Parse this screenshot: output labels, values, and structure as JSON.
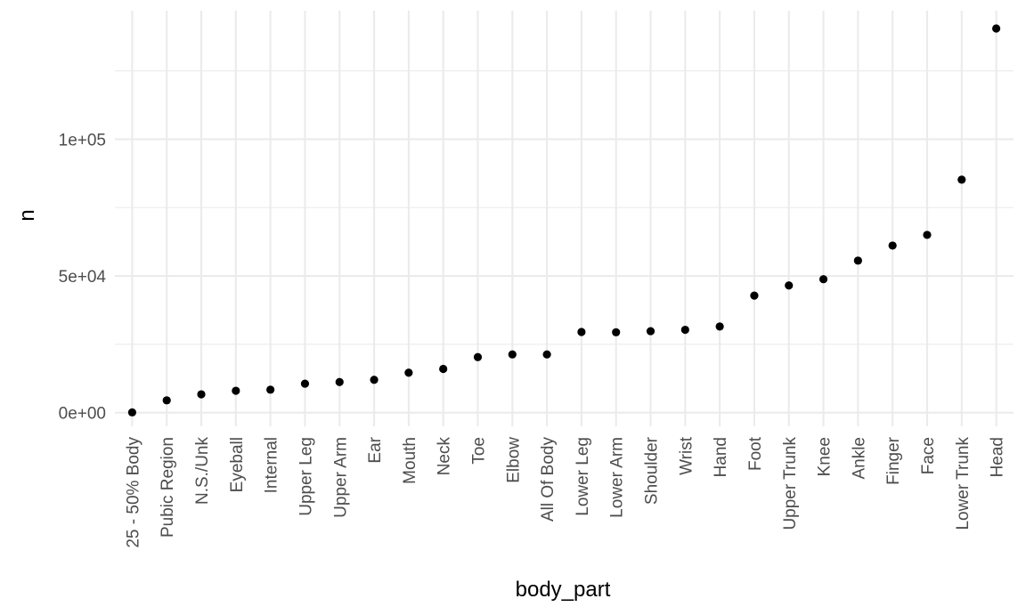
{
  "chart_data": {
    "type": "scatter",
    "title": "",
    "xlabel": "body_part",
    "ylabel": "n",
    "categories": [
      "25 - 50% Body",
      "Pubic Region",
      "N.S./Unk",
      "Eyeball",
      "Internal",
      "Upper Leg",
      "Upper Arm",
      "Ear",
      "Mouth",
      "Neck",
      "Toe",
      "Elbow",
      "All Of Body",
      "Lower Leg",
      "Lower Arm",
      "Shoulder",
      "Wrist",
      "Hand",
      "Foot",
      "Upper Trunk",
      "Knee",
      "Ankle",
      "Finger",
      "Face",
      "Lower Trunk",
      "Head"
    ],
    "values": [
      100,
      4500,
      6700,
      8000,
      8400,
      10600,
      11200,
      12000,
      14600,
      16000,
      20300,
      21300,
      21300,
      29500,
      29400,
      29800,
      30300,
      31500,
      42800,
      46500,
      48800,
      55600,
      61100,
      65000,
      85200,
      140500
    ],
    "y_ticks": [
      0,
      50000,
      100000
    ],
    "y_tick_labels": [
      "0e+00",
      "5e+04",
      "1e+05"
    ],
    "ylim": [
      -5000,
      147000
    ],
    "grid": true,
    "point_color": "#000000",
    "grid_color": "#ebebeb"
  }
}
